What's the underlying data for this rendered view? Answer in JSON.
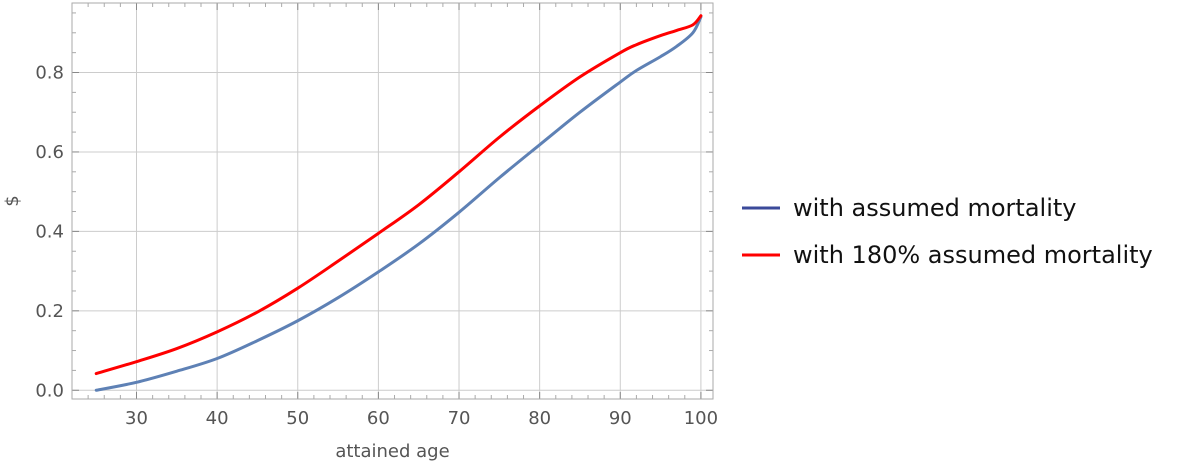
{
  "chart_data": {
    "type": "line",
    "title": "",
    "xlabel": "attained age",
    "ylabel": "$",
    "xlim": [
      22,
      101.5
    ],
    "ylim": [
      -0.022,
      0.975
    ],
    "x_ticks": [
      30,
      40,
      50,
      60,
      70,
      80,
      90,
      100
    ],
    "y_ticks": [
      0.0,
      0.2,
      0.4,
      0.6,
      0.8
    ],
    "x_tick_labels": [
      "30",
      "40",
      "50",
      "60",
      "70",
      "80",
      "90",
      "100"
    ],
    "y_tick_labels": [
      "0.0",
      "0.2",
      "0.4",
      "0.6",
      "0.8"
    ],
    "grid": true,
    "legend_position": "right",
    "series": [
      {
        "name": "with assumed mortality",
        "color": "#5e81b5",
        "legend_color": "#3b4a9a",
        "x": [
          25,
          30,
          35,
          40,
          45,
          50,
          55,
          60,
          65,
          70,
          75,
          80,
          85,
          90,
          92,
          95,
          97,
          99,
          100
        ],
        "y": [
          0.0,
          0.02,
          0.048,
          0.08,
          0.125,
          0.175,
          0.233,
          0.298,
          0.368,
          0.448,
          0.535,
          0.618,
          0.7,
          0.776,
          0.805,
          0.84,
          0.866,
          0.9,
          0.94
        ]
      },
      {
        "name": "with 180% assumed mortality",
        "color": "#ff0000",
        "legend_color": "#ff0000",
        "x": [
          25,
          30,
          35,
          40,
          45,
          50,
          55,
          60,
          65,
          70,
          75,
          80,
          85,
          90,
          92,
          95,
          97,
          99,
          100
        ],
        "y": [
          0.042,
          0.072,
          0.105,
          0.147,
          0.197,
          0.257,
          0.325,
          0.395,
          0.467,
          0.55,
          0.637,
          0.716,
          0.789,
          0.85,
          0.87,
          0.893,
          0.906,
          0.92,
          0.943
        ]
      }
    ]
  }
}
